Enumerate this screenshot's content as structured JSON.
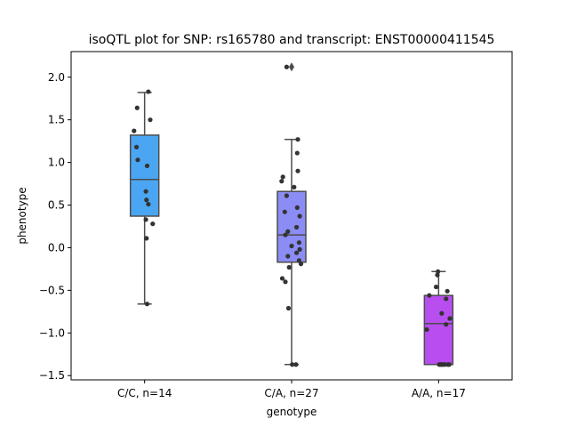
{
  "chart_data": {
    "type": "box",
    "title": "isoQTL plot for SNP: rs165780 and transcript: ENST00000411545",
    "xlabel": "genotype",
    "ylabel": "phenotype",
    "ylim": [
      -1.55,
      2.3
    ],
    "yticks": [
      -1.5,
      -1.0,
      -0.5,
      0.0,
      0.5,
      1.0,
      1.5,
      2.0
    ],
    "ytick_labels": [
      "−1.5",
      "−1.0",
      "−0.5",
      "0.0",
      "0.5",
      "1.0",
      "1.5",
      "2.0"
    ],
    "categories": [
      "C/C, n=14",
      "C/A, n=27",
      "A/A, n=17"
    ],
    "grid": false,
    "boxes": [
      {
        "category": "C/C, n=14",
        "color": "#4aa6f2",
        "whisker_low": -0.66,
        "q1": 0.37,
        "median": 0.8,
        "q3": 1.32,
        "whisker_high": 1.82,
        "outliers": []
      },
      {
        "category": "C/A, n=27",
        "color": "#8c8cf5",
        "whisker_low": -1.37,
        "q1": -0.17,
        "median": 0.15,
        "q3": 0.66,
        "whisker_high": 1.27,
        "outliers": [
          2.12
        ]
      },
      {
        "category": "A/A, n=17",
        "color": "#b84ef0",
        "whisker_low": -1.37,
        "q1": -1.37,
        "median": -0.89,
        "q3": -0.56,
        "whisker_high": -0.28,
        "outliers": []
      }
    ],
    "points": [
      [
        {
          "dx": 0.06,
          "y": 1.83
        },
        {
          "dx": -0.12,
          "y": 1.64
        },
        {
          "dx": 0.09,
          "y": 1.5
        },
        {
          "dx": -0.17,
          "y": 1.37
        },
        {
          "dx": -0.13,
          "y": 1.18
        },
        {
          "dx": -0.11,
          "y": 1.03
        },
        {
          "dx": 0.04,
          "y": 0.96
        },
        {
          "dx": 0.02,
          "y": 0.66
        },
        {
          "dx": 0.03,
          "y": 0.56
        },
        {
          "dx": 0.06,
          "y": 0.51
        },
        {
          "dx": 0.02,
          "y": 0.33
        },
        {
          "dx": 0.13,
          "y": 0.28
        },
        {
          "dx": 0.03,
          "y": 0.11
        },
        {
          "dx": 0.04,
          "y": -0.66
        }
      ],
      [
        {
          "dx": -0.08,
          "y": 2.12
        },
        {
          "dx": 0.1,
          "y": 1.27
        },
        {
          "dx": 0.09,
          "y": 1.11
        },
        {
          "dx": 0.1,
          "y": 0.9
        },
        {
          "dx": -0.14,
          "y": 0.83
        },
        {
          "dx": -0.16,
          "y": 0.78
        },
        {
          "dx": 0.04,
          "y": 0.71
        },
        {
          "dx": -0.08,
          "y": 0.61
        },
        {
          "dx": 0.09,
          "y": 0.47
        },
        {
          "dx": -0.11,
          "y": 0.42
        },
        {
          "dx": 0.13,
          "y": 0.37
        },
        {
          "dx": 0.08,
          "y": 0.24
        },
        {
          "dx": -0.06,
          "y": 0.19
        },
        {
          "dx": -0.1,
          "y": 0.15
        },
        {
          "dx": 0.12,
          "y": 0.06
        },
        {
          "dx": 0.0,
          "y": 0.02
        },
        {
          "dx": 0.13,
          "y": -0.02
        },
        {
          "dx": 0.08,
          "y": -0.06
        },
        {
          "dx": -0.06,
          "y": -0.1
        },
        {
          "dx": 0.12,
          "y": -0.15
        },
        {
          "dx": 0.15,
          "y": -0.19
        },
        {
          "dx": -0.04,
          "y": -0.23
        },
        {
          "dx": -0.15,
          "y": -0.36
        },
        {
          "dx": -0.1,
          "y": -0.4
        },
        {
          "dx": -0.05,
          "y": -0.71
        },
        {
          "dx": 0.01,
          "y": -1.37
        },
        {
          "dx": 0.07,
          "y": -1.37
        }
      ],
      [
        {
          "dx": -0.01,
          "y": -0.28
        },
        {
          "dx": -0.02,
          "y": -0.32
        },
        {
          "dx": -0.04,
          "y": -0.46
        },
        {
          "dx": 0.14,
          "y": -0.51
        },
        {
          "dx": -0.15,
          "y": -0.56
        },
        {
          "dx": 0.12,
          "y": -0.6
        },
        {
          "dx": 0.05,
          "y": -0.77
        },
        {
          "dx": 0.18,
          "y": -0.83
        },
        {
          "dx": 0.12,
          "y": -0.9
        },
        {
          "dx": -0.19,
          "y": -0.96
        },
        {
          "dx": 0.01,
          "y": -1.37
        },
        {
          "dx": 0.03,
          "y": -1.37
        },
        {
          "dx": 0.05,
          "y": -1.37
        },
        {
          "dx": 0.07,
          "y": -1.37
        },
        {
          "dx": 0.1,
          "y": -1.37
        },
        {
          "dx": 0.15,
          "y": -1.37
        },
        {
          "dx": 0.17,
          "y": -1.37
        }
      ]
    ]
  }
}
